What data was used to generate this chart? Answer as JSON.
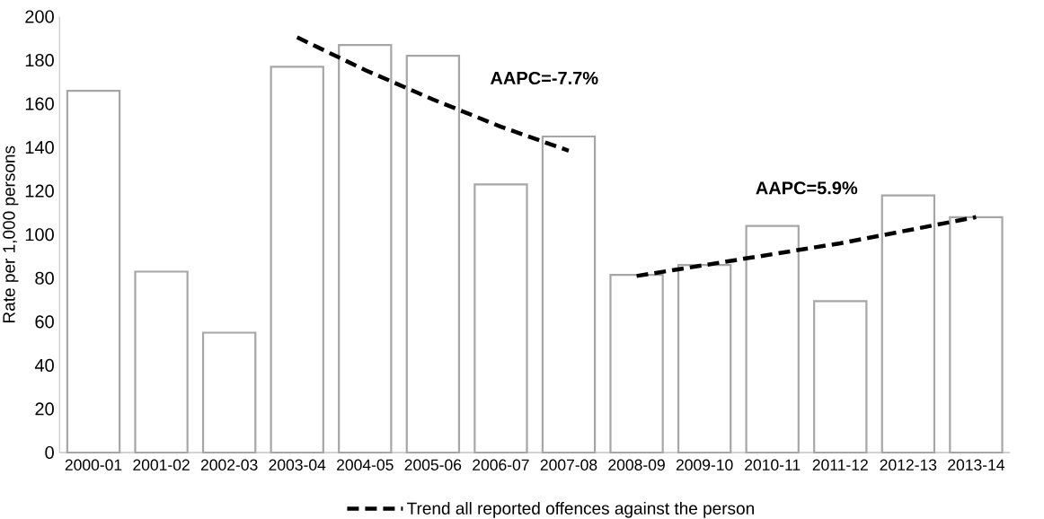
{
  "chart_data": {
    "type": "bar",
    "ylabel": "Rate per 1,000 persons",
    "categories": [
      "2000-01",
      "2001-02",
      "2002-03",
      "2003-04",
      "2004-05",
      "2005-06",
      "2006-07",
      "2007-08",
      "2008-09",
      "2009-10",
      "2010-11",
      "2011-12",
      "2012-13",
      "2013-14"
    ],
    "series": [
      {
        "color": "#a6a6a6",
        "values": [
          166,
          83,
          55,
          177,
          187,
          182,
          123,
          145,
          81.5,
          86,
          104,
          69.5,
          118,
          108
        ]
      },
      {
        "type": "line",
        "name": "Trend all reported offences against the person",
        "color": "#000000",
        "line_style": "dashed",
        "values": [
          null,
          null,
          null,
          190.5,
          175.5,
          162,
          149.5,
          138.5,
          null,
          null,
          null,
          null,
          null,
          null
        ]
      },
      {
        "type": "line",
        "color": "#000000",
        "line_style": "dashed",
        "values": [
          null,
          null,
          null,
          null,
          null,
          null,
          null,
          null,
          81,
          86,
          91,
          96,
          102,
          108
        ]
      }
    ],
    "ylim": [
      0,
      200
    ],
    "yticks": [
      0,
      20,
      40,
      60,
      80,
      100,
      120,
      140,
      160,
      180,
      200
    ],
    "annotations": [
      "AAPC=-7.7%",
      "AAPC=5.9%"
    ],
    "grid": false,
    "legend": "bottom",
    "marker": "none"
  }
}
